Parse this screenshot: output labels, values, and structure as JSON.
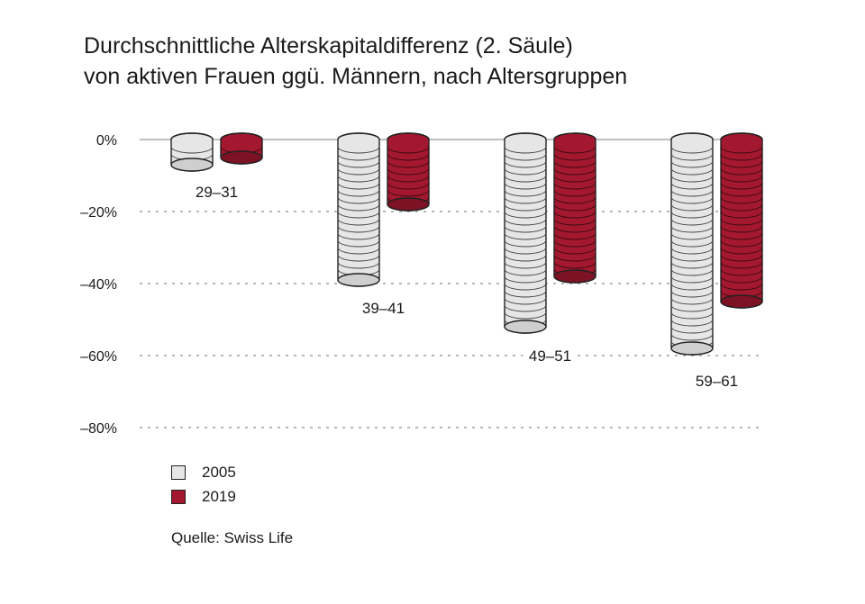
{
  "title": {
    "line1": "Durchschnittliche Alterskapitaldifferenz (2. Säule)",
    "line2": "von aktiven Frauen ggü. Männern, nach Altersgruppen"
  },
  "legend": [
    {
      "label": "2005",
      "color": "#e6e6e6"
    },
    {
      "label": "2019",
      "color": "#a3182f"
    }
  ],
  "source": "Quelle: Swiss Life",
  "chart_data": {
    "type": "bar",
    "title": "Durchschnittliche Alterskapitaldifferenz (2. Säule) von aktiven Frauen ggü. Männern, nach Altersgruppen",
    "xlabel": "",
    "ylabel": "",
    "categories": [
      "29–31",
      "39–41",
      "49–51",
      "59–61"
    ],
    "series": [
      {
        "name": "2005",
        "color": "#e6e6e6",
        "values": [
          -7,
          -39,
          -52,
          -58
        ]
      },
      {
        "name": "2019",
        "color": "#a3182f",
        "values": [
          -5,
          -18,
          -38,
          -45
        ]
      }
    ],
    "ylim": [
      -80,
      0
    ],
    "yticks": [
      "0%",
      "–20%",
      "–40%",
      "–60%",
      "–80%"
    ],
    "grid": "dashed horizontal",
    "legend_position": "bottom-left",
    "annotations": [
      "Quelle: Swiss Life"
    ]
  }
}
